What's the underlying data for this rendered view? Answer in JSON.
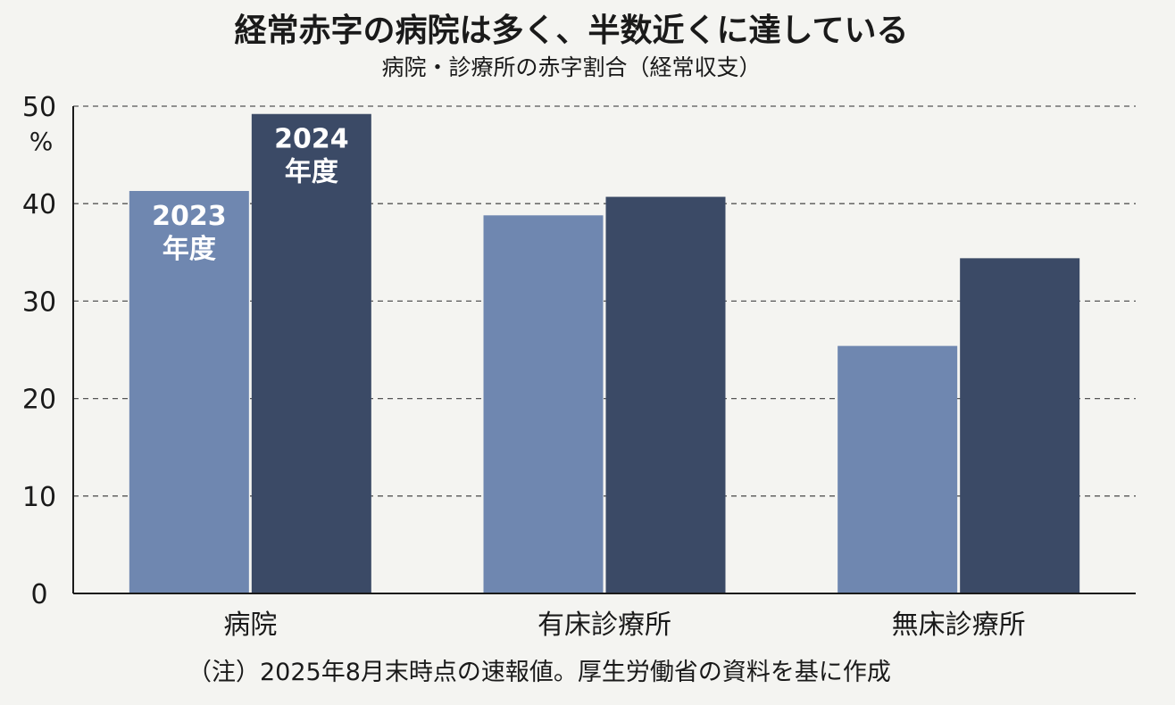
{
  "chart_data": {
    "type": "bar",
    "title": "経常赤字の病院は多く、半数近くに達している",
    "subtitle": "病院・診療所の赤字割合（経常収支）",
    "ylabel": "%",
    "ylim": [
      0,
      50
    ],
    "yticks": [
      0,
      10,
      20,
      30,
      40,
      50
    ],
    "grid": true,
    "categories": [
      "病院",
      "有床診療所",
      "無床診療所"
    ],
    "series": [
      {
        "name": "2023年度",
        "label_lines": [
          "2023",
          "年度"
        ],
        "color": "#6f87b0",
        "values": [
          41.3,
          38.8,
          25.4
        ]
      },
      {
        "name": "2024年度",
        "label_lines": [
          "2024",
          "年度"
        ],
        "color": "#3b4a66",
        "values": [
          49.2,
          40.7,
          34.4
        ]
      }
    ],
    "note": "（注）2025年8月末時点の速報値。厚生労働省の資料を基に作成"
  }
}
